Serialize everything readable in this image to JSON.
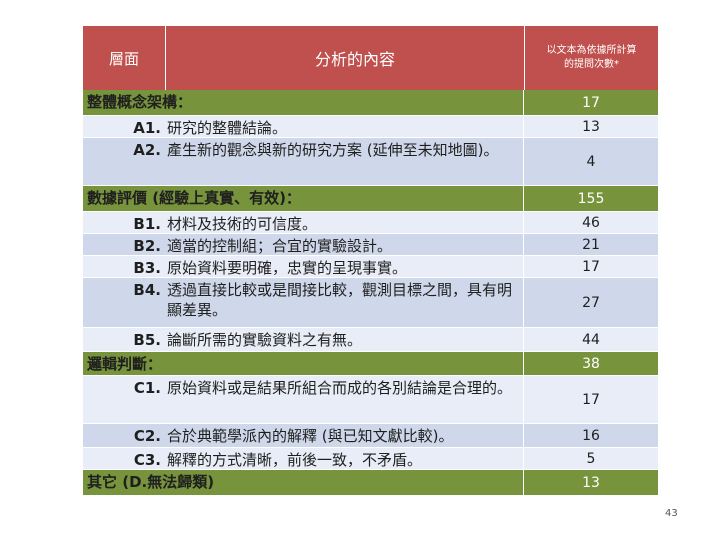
{
  "header": {
    "layer": "層面",
    "content": "分析的內容",
    "count_line1": "以文本為依據所計算",
    "count_line2": "的提問次數*"
  },
  "rows": [
    {
      "type": "section",
      "code": "",
      "text": "整體概念架構：",
      "count": "17"
    },
    {
      "type": "light",
      "code": "A1.",
      "text": "研究的整體結論。",
      "count": "13"
    },
    {
      "type": "mid",
      "code": "A2.",
      "text": "產生新的觀念與新的研究方案 (延伸至未知地圖)。",
      "count": "4"
    },
    {
      "type": "section",
      "code": "",
      "text": "數據評價 (經驗上真實、有效)：",
      "count": "155"
    },
    {
      "type": "light",
      "code": "B1.",
      "text": "材料及技術的可信度。",
      "count": "46"
    },
    {
      "type": "mid",
      "code": "B2.",
      "text": "適當的控制組；合宜的實驗設計。",
      "count": "21"
    },
    {
      "type": "light",
      "code": "B3.",
      "text": "原始資料要明確，忠實的呈現事實。",
      "count": "17"
    },
    {
      "type": "mid",
      "code": "B4.",
      "text": "透過直接比較或是間接比較，觀測目標之間，具有明顯差異。",
      "count": "27"
    },
    {
      "type": "light",
      "code": "B5.",
      "text": "論斷所需的實驗資料之有無。",
      "count": "44"
    },
    {
      "type": "section",
      "code": "",
      "text": "邏輯判斷：",
      "count": "38"
    },
    {
      "type": "light",
      "code": "C1.",
      "text": "原始資料或是結果所組合而成的各別結論是合理的。",
      "count": "17"
    },
    {
      "type": "mid",
      "code": "C2.",
      "text": "合於典範學派內的解釋 (與已知文獻比較)。",
      "count": "16"
    },
    {
      "type": "light",
      "code": "C3.",
      "text": "解釋的方式清晰，前後一致，不矛盾。",
      "count": "5"
    },
    {
      "type": "section",
      "code": "",
      "text": "其它 (D.無法歸類)",
      "count": "13"
    }
  ],
  "page_number": "43"
}
